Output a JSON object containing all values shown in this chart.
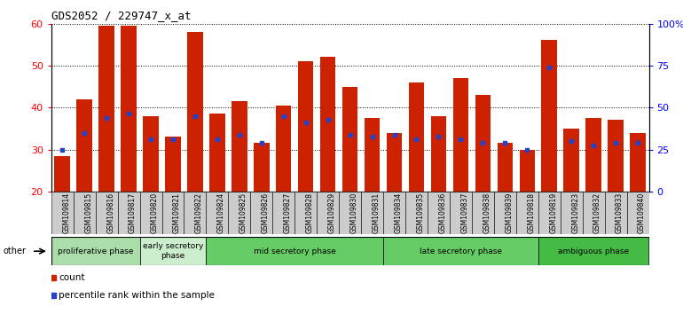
{
  "title": "GDS2052 / 229747_x_at",
  "samples": [
    "GSM109814",
    "GSM109815",
    "GSM109816",
    "GSM109817",
    "GSM109820",
    "GSM109821",
    "GSM109822",
    "GSM109824",
    "GSM109825",
    "GSM109826",
    "GSM109827",
    "GSM109828",
    "GSM109829",
    "GSM109830",
    "GSM109831",
    "GSM109834",
    "GSM109835",
    "GSM109836",
    "GSM109837",
    "GSM109838",
    "GSM109839",
    "GSM109818",
    "GSM109819",
    "GSM109823",
    "GSM109832",
    "GSM109833",
    "GSM109840"
  ],
  "count_values": [
    28.5,
    42.0,
    59.5,
    59.5,
    38.0,
    33.0,
    58.0,
    38.5,
    41.5,
    31.5,
    40.5,
    51.0,
    52.0,
    45.0,
    37.5,
    34.0,
    46.0,
    38.0,
    47.0,
    43.0,
    31.5,
    30.0,
    56.0,
    35.0,
    37.5,
    37.0,
    34.0
  ],
  "percentile_values": [
    30.0,
    34.0,
    37.5,
    38.5,
    32.5,
    32.5,
    38.0,
    32.5,
    33.5,
    31.5,
    38.0,
    36.5,
    37.0,
    33.5,
    33.0,
    33.5,
    32.5,
    33.0,
    32.5,
    31.5,
    31.5,
    30.0,
    49.5,
    32.0,
    31.0,
    31.5,
    31.5
  ],
  "phases": [
    {
      "label": "proliferative phase",
      "start": 0,
      "end": 4,
      "color": "#aaddaa"
    },
    {
      "label": "early secretory\nphase",
      "start": 4,
      "end": 7,
      "color": "#cceecc"
    },
    {
      "label": "mid secretory phase",
      "start": 7,
      "end": 15,
      "color": "#66cc66"
    },
    {
      "label": "late secretory phase",
      "start": 15,
      "end": 22,
      "color": "#66cc66"
    },
    {
      "label": "ambiguous phase",
      "start": 22,
      "end": 27,
      "color": "#44bb44"
    }
  ],
  "bar_color": "#cc2200",
  "percentile_color": "#2244cc",
  "ylim_left": [
    20,
    60
  ],
  "ylim_right": [
    0,
    100
  ],
  "yticks_left": [
    20,
    30,
    40,
    50,
    60
  ],
  "yticks_right": [
    0,
    25,
    50,
    75,
    100
  ],
  "yticklabels_right": [
    "0",
    "25",
    "50",
    "75",
    "100%"
  ],
  "tick_bg_color": "#cccccc"
}
